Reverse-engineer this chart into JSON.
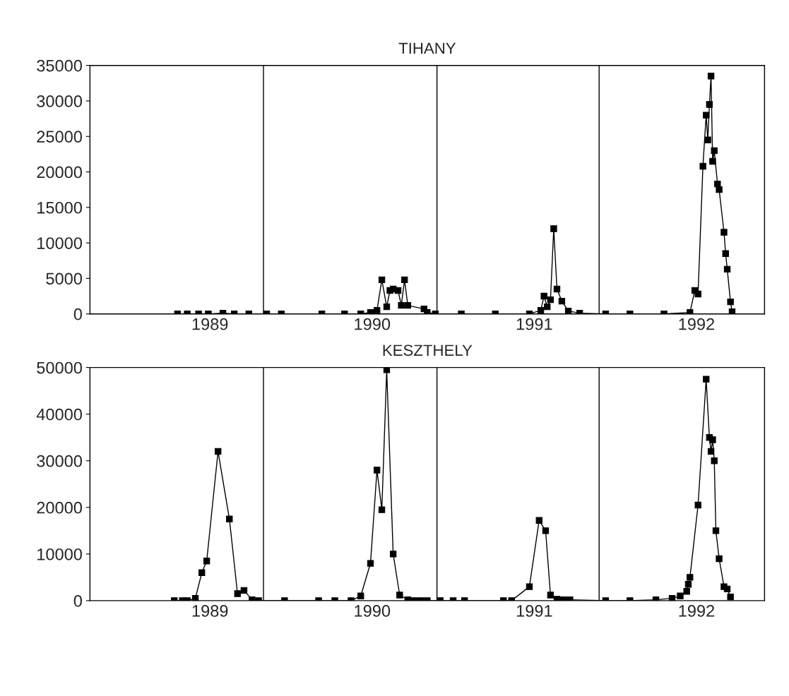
{
  "chart_data": [
    {
      "type": "line",
      "title": "TIHANY",
      "xlim": [
        1988.26,
        1992.42
      ],
      "xticks": [
        1989,
        1990,
        1991,
        1992
      ],
      "ylim": [
        0,
        35000
      ],
      "yticks": [
        0,
        5000,
        10000,
        15000,
        20000,
        25000,
        30000,
        35000
      ],
      "marker": "square",
      "grid": false,
      "legend": false,
      "ref_lines": [
        {
          "axis": "x",
          "value": 1989.33,
          "color": "#000000"
        },
        {
          "axis": "x",
          "value": 1990.4,
          "color": "#000000"
        },
        {
          "axis": "x",
          "value": 1991.4,
          "color": "#000000"
        }
      ],
      "series": [
        {
          "color": "#000000",
          "x": [
            1988.8,
            1988.86,
            1988.93,
            1988.99,
            1989.08,
            1989.15,
            1989.24,
            1989.35,
            1989.44,
            1989.69,
            1989.83,
            1989.93,
            1989.99,
            1990.03,
            1990.06,
            1990.09,
            1990.11,
            1990.13,
            1990.16,
            1990.18,
            1990.2,
            1990.22,
            1990.32,
            1990.34,
            1990.39,
            1990.55,
            1990.76,
            1990.97,
            1991.04,
            1991.06,
            1991.08,
            1991.1,
            1991.12,
            1991.14,
            1991.17,
            1991.21,
            1991.28,
            1991.44,
            1991.59,
            1991.8,
            1991.96,
            1991.99,
            1992.01,
            1992.04,
            1992.06,
            1992.07,
            1992.08,
            1992.09,
            1992.1,
            1992.11,
            1992.13,
            1992.14,
            1992.17,
            1992.18,
            1992.19,
            1992.21,
            1992.22
          ],
          "values": [
            0,
            0,
            0,
            0,
            100,
            0,
            0,
            0,
            0,
            0,
            0,
            0,
            200,
            500,
            4800,
            1000,
            3300,
            3500,
            3300,
            1200,
            4800,
            1200,
            700,
            200,
            0,
            0,
            0,
            0,
            500,
            2500,
            1000,
            2000,
            12000,
            3500,
            1800,
            400,
            100,
            0,
            0,
            0,
            200,
            3300,
            2800,
            20800,
            28000,
            24500,
            29500,
            33500,
            21500,
            23000,
            18300,
            17500,
            11500,
            8500,
            6300,
            1700,
            300
          ]
        }
      ]
    },
    {
      "type": "line",
      "title": "KESZTHELY",
      "xlim": [
        1988.26,
        1992.42
      ],
      "xticks": [
        1989,
        1990,
        1991,
        1992
      ],
      "ylim": [
        0,
        50000
      ],
      "yticks": [
        0,
        10000,
        20000,
        30000,
        40000,
        50000
      ],
      "marker": "square",
      "grid": false,
      "legend": false,
      "ref_lines": [
        {
          "axis": "x",
          "value": 1989.33,
          "color": "#000000"
        },
        {
          "axis": "x",
          "value": 1990.4,
          "color": "#000000"
        },
        {
          "axis": "x",
          "value": 1991.4,
          "color": "#000000"
        }
      ],
      "series": [
        {
          "color": "#000000",
          "x": [
            1988.78,
            1988.83,
            1988.86,
            1988.91,
            1988.95,
            1988.98,
            1989.05,
            1989.12,
            1989.17,
            1989.21,
            1989.26,
            1989.3,
            1989.46,
            1989.67,
            1989.77,
            1989.87,
            1989.93,
            1989.99,
            1990.03,
            1990.06,
            1990.09,
            1990.13,
            1990.17,
            1990.22,
            1990.26,
            1990.3,
            1990.34,
            1990.42,
            1990.5,
            1990.57,
            1990.81,
            1990.86,
            1990.97,
            1991.03,
            1991.07,
            1991.1,
            1991.14,
            1991.18,
            1991.22,
            1991.44,
            1991.59,
            1991.75,
            1991.85,
            1991.9,
            1991.94,
            1991.95,
            1991.96,
            1992.01,
            1992.06,
            1992.08,
            1992.09,
            1992.1,
            1992.11,
            1992.12,
            1992.14,
            1992.17,
            1992.19,
            1992.21
          ],
          "values": [
            0,
            0,
            0,
            500,
            6000,
            8500,
            32000,
            17500,
            1500,
            2200,
            200,
            0,
            0,
            0,
            0,
            0,
            1000,
            8000,
            28000,
            19500,
            49500,
            10000,
            1200,
            200,
            0,
            0,
            0,
            0,
            0,
            0,
            0,
            0,
            3000,
            17200,
            15000,
            1200,
            300,
            200,
            200,
            0,
            0,
            200,
            500,
            1000,
            2000,
            3500,
            5000,
            20500,
            47500,
            35000,
            32000,
            34500,
            30000,
            15000,
            9000,
            3000,
            2500,
            800
          ]
        }
      ]
    }
  ]
}
